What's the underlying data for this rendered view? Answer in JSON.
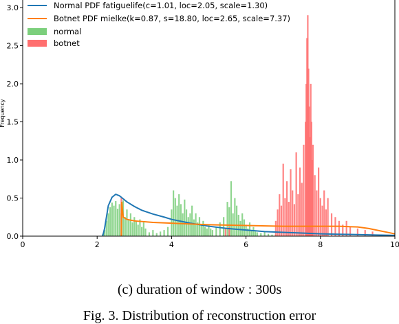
{
  "subcaption": "(c) duration of window : 300s",
  "figcaption": "Fig. 3.  Distribution of reconstruction error",
  "chart_data": {
    "type": "area",
    "ylabel": "Frequency",
    "xlim": [
      0,
      10
    ],
    "ylim": [
      0,
      3.1
    ],
    "xticks": [
      "0",
      "2",
      "4",
      "6",
      "8",
      "10"
    ],
    "yticks": [
      "0.0",
      "0.5",
      "1.0",
      "1.5",
      "2.0",
      "2.5",
      "3.0"
    ],
    "legend_position": "top-left",
    "legend": [
      {
        "label": "Normal PDF fatiguelife(c=1.01, loc=2.05, scale=1.30)",
        "kind": "line",
        "color": "#1f77b4"
      },
      {
        "label": "Botnet PDF mielke(k=0.87, s=18.80, loc=2.65, scale=7.37)",
        "kind": "line",
        "color": "#ff7f0e"
      },
      {
        "label": "normal",
        "kind": "patch",
        "color": "#7ccf7c"
      },
      {
        "label": "botnet",
        "kind": "patch",
        "color": "#ff6f6f"
      }
    ],
    "series": [
      {
        "name": "Normal PDF fatiguelife(c=1.01, loc=2.05, scale=1.30)",
        "kind": "line",
        "color": "#1f77b4",
        "x": [
          2.15,
          2.2,
          2.3,
          2.4,
          2.5,
          2.6,
          2.7,
          2.8,
          3.0,
          3.2,
          3.5,
          3.8,
          4.0,
          4.5,
          5.0,
          5.5,
          6.0,
          6.5,
          7.0,
          7.5,
          8.0,
          8.5,
          9.0,
          9.5,
          10.0
        ],
        "y": [
          0.0,
          0.1,
          0.4,
          0.51,
          0.55,
          0.53,
          0.49,
          0.45,
          0.39,
          0.34,
          0.29,
          0.25,
          0.22,
          0.17,
          0.13,
          0.1,
          0.08,
          0.06,
          0.05,
          0.04,
          0.03,
          0.025,
          0.02,
          0.015,
          0.01
        ]
      },
      {
        "name": "Botnet PDF mielke(k=0.87, s=18.80, loc=2.65, scale=7.37)",
        "kind": "line",
        "color": "#ff7f0e",
        "x": [
          2.65,
          2.66,
          2.7,
          2.8,
          3.0,
          3.5,
          4.0,
          5.0,
          6.0,
          7.0,
          7.5,
          8.0,
          8.5,
          9.0,
          9.3,
          9.6,
          9.8,
          10.0
        ],
        "y": [
          0.0,
          0.45,
          0.25,
          0.22,
          0.2,
          0.18,
          0.17,
          0.15,
          0.14,
          0.13,
          0.13,
          0.13,
          0.13,
          0.12,
          0.1,
          0.07,
          0.05,
          0.03
        ]
      },
      {
        "name": "normal",
        "kind": "histogram",
        "color": "#7ccf7c",
        "x": [
          2.15,
          2.2,
          2.25,
          2.3,
          2.35,
          2.4,
          2.45,
          2.5,
          2.55,
          2.6,
          2.65,
          2.7,
          2.75,
          2.8,
          2.85,
          2.9,
          2.95,
          3.0,
          3.05,
          3.1,
          3.15,
          3.2,
          3.25,
          3.3,
          3.4,
          3.5,
          3.6,
          3.7,
          3.8,
          3.9,
          4.0,
          4.05,
          4.1,
          4.15,
          4.2,
          4.25,
          4.3,
          4.35,
          4.4,
          4.45,
          4.5,
          4.55,
          4.6,
          4.65,
          4.7,
          4.75,
          4.8,
          4.85,
          4.9,
          4.95,
          5.0,
          5.05,
          5.1,
          5.2,
          5.3,
          5.4,
          5.5,
          5.55,
          5.6,
          5.65,
          5.7,
          5.75,
          5.8,
          5.85,
          5.9,
          5.95,
          6.0,
          6.05,
          6.1,
          6.15,
          6.2,
          6.25,
          6.3,
          6.4,
          6.5,
          6.6,
          6.7,
          6.8
        ],
        "y": [
          0.03,
          0.08,
          0.2,
          0.3,
          0.38,
          0.44,
          0.4,
          0.46,
          0.36,
          0.42,
          0.3,
          0.47,
          0.25,
          0.35,
          0.22,
          0.3,
          0.18,
          0.25,
          0.2,
          0.15,
          0.22,
          0.12,
          0.18,
          0.1,
          0.05,
          0.08,
          0.04,
          0.06,
          0.08,
          0.12,
          0.35,
          0.6,
          0.5,
          0.4,
          0.55,
          0.42,
          0.3,
          0.48,
          0.35,
          0.25,
          0.3,
          0.4,
          0.22,
          0.3,
          0.18,
          0.25,
          0.15,
          0.2,
          0.12,
          0.1,
          0.14,
          0.1,
          0.08,
          0.12,
          0.18,
          0.25,
          0.45,
          0.38,
          0.72,
          0.3,
          0.5,
          0.4,
          0.28,
          0.2,
          0.3,
          0.22,
          0.15,
          0.1,
          0.18,
          0.08,
          0.12,
          0.06,
          0.05,
          0.04,
          0.06,
          0.03,
          0.02,
          0.02
        ]
      },
      {
        "name": "botnet",
        "kind": "histogram",
        "color": "#ff6f6f",
        "x": [
          2.65,
          5.45,
          5.55,
          6.8,
          6.85,
          6.9,
          6.95,
          7.0,
          7.05,
          7.1,
          7.15,
          7.2,
          7.25,
          7.3,
          7.35,
          7.4,
          7.45,
          7.5,
          7.55,
          7.6,
          7.62,
          7.64,
          7.66,
          7.68,
          7.7,
          7.72,
          7.74,
          7.76,
          7.78,
          7.8,
          7.85,
          7.9,
          7.95,
          8.0,
          8.05,
          8.1,
          8.15,
          8.2,
          8.3,
          8.4,
          8.5,
          8.6,
          8.7,
          8.8,
          9.0,
          9.2,
          9.4
        ],
        "y": [
          0.5,
          0.1,
          0.12,
          0.2,
          0.35,
          0.55,
          0.4,
          0.95,
          0.5,
          0.72,
          0.45,
          0.88,
          0.6,
          0.42,
          1.1,
          0.55,
          0.9,
          0.7,
          1.2,
          1.5,
          2.0,
          2.6,
          2.9,
          2.2,
          1.7,
          1.3,
          2.0,
          1.5,
          1.0,
          1.2,
          0.8,
          0.6,
          0.9,
          0.5,
          0.4,
          0.6,
          0.35,
          0.5,
          0.3,
          0.25,
          0.2,
          0.15,
          0.2,
          0.12,
          0.1,
          0.08,
          0.06
        ]
      }
    ]
  }
}
